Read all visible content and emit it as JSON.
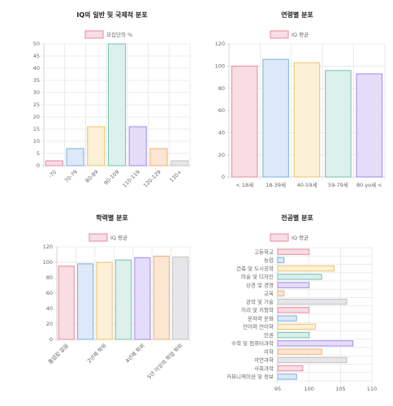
{
  "chart_data": [
    {
      "id": "dist",
      "type": "bar",
      "orientation": "vertical",
      "title": "IQ의 일반 및 국제적 분포",
      "legend": "모집단의 %",
      "categories": [
        "-70",
        "70-79",
        "80-89",
        "90-109",
        "110-119",
        "120-129",
        "130+"
      ],
      "values": [
        2,
        7,
        16,
        50,
        16,
        7,
        2
      ],
      "ylim": [
        0,
        50
      ],
      "yticks": [
        0,
        5,
        10,
        15,
        20,
        25,
        30,
        35,
        40,
        45,
        50
      ],
      "rotate_x_labels": true,
      "grid": true
    },
    {
      "id": "age",
      "type": "bar",
      "orientation": "vertical",
      "title": "연령별 분포",
      "legend": "IQ 평균",
      "categories": [
        "< 18세",
        "18-39세",
        "40-59세",
        "59-79세",
        "80 yo세 <"
      ],
      "values": [
        100,
        106,
        103,
        96,
        93
      ],
      "ylim": [
        0,
        120
      ],
      "yticks": [
        0,
        20,
        40,
        60,
        80,
        100,
        120
      ],
      "rotate_x_labels": false,
      "grid": true
    },
    {
      "id": "edu",
      "type": "bar",
      "orientation": "vertical",
      "title": "학력별 분포",
      "legend": "IQ 평균",
      "categories": [
        "졸업장 없음",
        "",
        "2년제 학위",
        "",
        "4년제 학위",
        "",
        "5년 이상의 학업 학위"
      ],
      "values": [
        95,
        98,
        100,
        103,
        106,
        108,
        107
      ],
      "ylim": [
        0,
        120
      ],
      "yticks": [
        0,
        20,
        40,
        60,
        80,
        100,
        120
      ],
      "rotate_x_labels": true,
      "grid": true
    },
    {
      "id": "major",
      "type": "bar",
      "orientation": "horizontal",
      "title": "전공별 분포",
      "legend": "IQ 평균",
      "categories": [
        "고등학교",
        "농업",
        "건축 및 도시공학",
        "미술 및 디자인",
        "상경 및 경영",
        "교육",
        "공학 및 기술",
        "지리 및 지형학",
        "문자와 문화",
        "언어와 언어학",
        "인권",
        "수학 및 컴퓨터과학",
        "의학",
        "자연과학",
        "사회과학",
        "커뮤니케이션 및 정보"
      ],
      "values": [
        100,
        96,
        104,
        102,
        100,
        96,
        106,
        100,
        98,
        101,
        100,
        107,
        102,
        106,
        99,
        98
      ],
      "xlim": [
        95,
        110
      ],
      "xticks": [
        95,
        100,
        105,
        110
      ],
      "grid": true
    }
  ],
  "palette": {
    "fills": [
      "#f8dde3",
      "#dde9f8",
      "#fcf0d6",
      "#dcf0ec",
      "#e5dcf9",
      "#fbe6d3",
      "#e6e6e8"
    ],
    "strokes": [
      "#e68a9e",
      "#78aee3",
      "#edc46b",
      "#73c2b2",
      "#a08ae6",
      "#eeb173",
      "#c2c2c6"
    ],
    "legend_fill": "#f8dde3",
    "legend_stroke": "#e68a9e"
  }
}
